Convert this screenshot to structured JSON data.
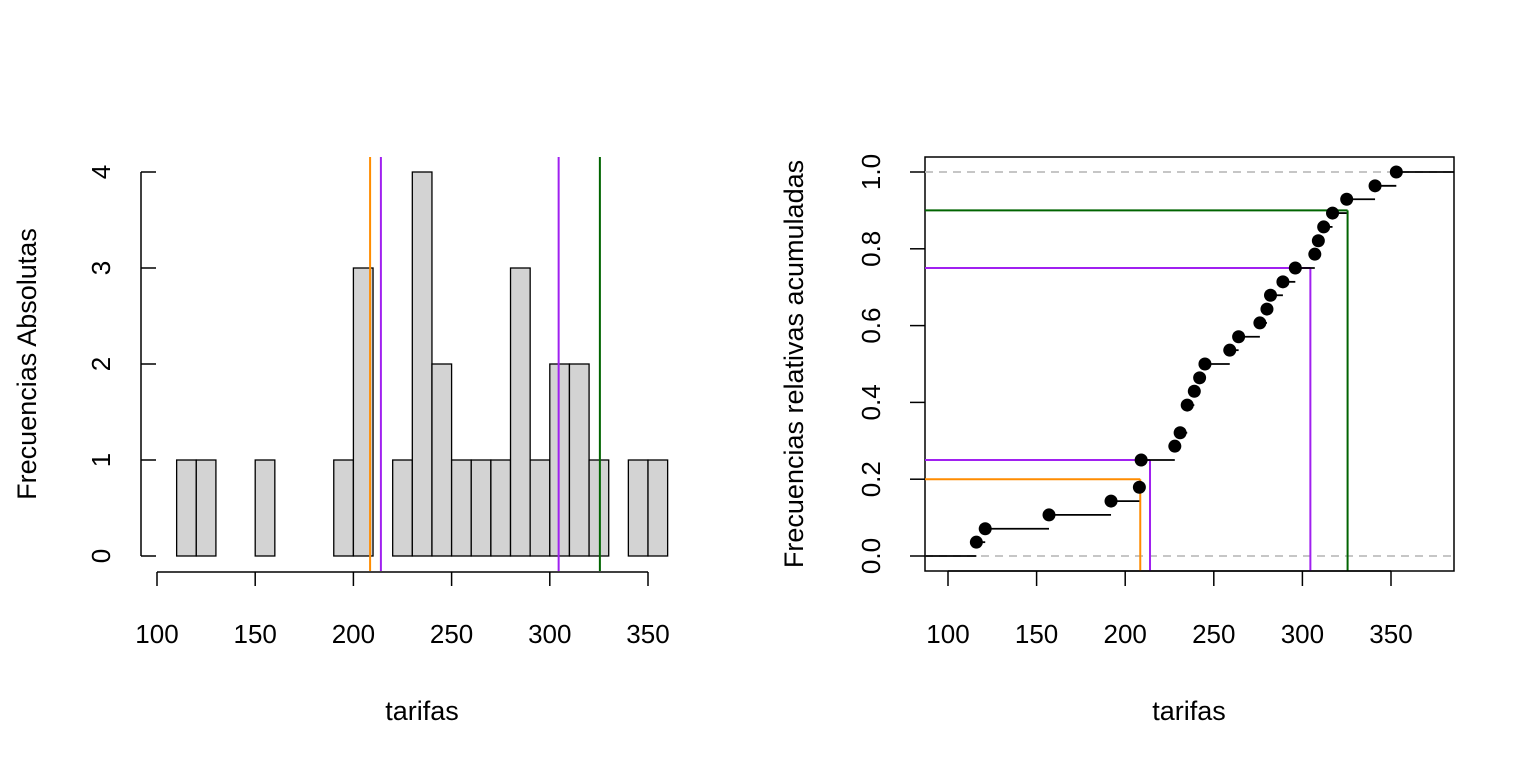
{
  "colors": {
    "bar_fill": "#d3d3d3",
    "bar_stroke": "#000000",
    "orange": "#ff8c00",
    "purple": "#a020f0",
    "green": "#006400",
    "ref_dash": "#bebebe",
    "point": "#000000"
  },
  "chart_data": [
    {
      "type": "bar",
      "subtype": "histogram",
      "xlabel": "tarifas",
      "ylabel": "Frecuencias Absolutas",
      "xlim": [
        100,
        360
      ],
      "ylim": [
        0,
        4
      ],
      "xticks": [
        100,
        150,
        200,
        250,
        300,
        350
      ],
      "yticks": [
        0,
        1,
        2,
        3,
        4
      ],
      "bins": [
        {
          "x0": 110,
          "x1": 120,
          "count": 1
        },
        {
          "x0": 120,
          "x1": 130,
          "count": 1
        },
        {
          "x0": 130,
          "x1": 140,
          "count": 0
        },
        {
          "x0": 140,
          "x1": 150,
          "count": 0
        },
        {
          "x0": 150,
          "x1": 160,
          "count": 1
        },
        {
          "x0": 160,
          "x1": 170,
          "count": 0
        },
        {
          "x0": 170,
          "x1": 180,
          "count": 0
        },
        {
          "x0": 180,
          "x1": 190,
          "count": 0
        },
        {
          "x0": 190,
          "x1": 200,
          "count": 1
        },
        {
          "x0": 200,
          "x1": 210,
          "count": 3
        },
        {
          "x0": 210,
          "x1": 220,
          "count": 0
        },
        {
          "x0": 220,
          "x1": 230,
          "count": 1
        },
        {
          "x0": 230,
          "x1": 240,
          "count": 4
        },
        {
          "x0": 240,
          "x1": 250,
          "count": 2
        },
        {
          "x0": 250,
          "x1": 260,
          "count": 1
        },
        {
          "x0": 260,
          "x1": 270,
          "count": 1
        },
        {
          "x0": 270,
          "x1": 280,
          "count": 1
        },
        {
          "x0": 280,
          "x1": 290,
          "count": 3
        },
        {
          "x0": 290,
          "x1": 300,
          "count": 1
        },
        {
          "x0": 300,
          "x1": 310,
          "count": 2
        },
        {
          "x0": 310,
          "x1": 320,
          "count": 2
        },
        {
          "x0": 320,
          "x1": 330,
          "count": 1
        },
        {
          "x0": 330,
          "x1": 340,
          "count": 0
        },
        {
          "x0": 340,
          "x1": 350,
          "count": 1
        },
        {
          "x0": 350,
          "x1": 360,
          "count": 1
        }
      ],
      "vlines": [
        {
          "x": 208.5,
          "color": "#ff8c00"
        },
        {
          "x": 214,
          "color": "#a020f0"
        },
        {
          "x": 304.5,
          "color": "#a020f0"
        },
        {
          "x": 325.5,
          "color": "#006400"
        }
      ]
    },
    {
      "type": "line",
      "subtype": "ecdf-step",
      "xlabel": "tarifas",
      "ylabel": "Frecuencias relativas acumuladas",
      "xlim": [
        87,
        383
      ],
      "ylim": [
        -0.04,
        1.04
      ],
      "xticks": [
        100,
        150,
        200,
        250,
        300,
        350
      ],
      "yticks": [
        0.0,
        0.2,
        0.4,
        0.6,
        0.8,
        1.0
      ],
      "ytick_labels": [
        "0.0",
        "0.2",
        "0.4",
        "0.6",
        "0.8",
        "1.0"
      ],
      "reference_lines_y": [
        0,
        1
      ],
      "points": [
        {
          "x": 116,
          "y": 0.036
        },
        {
          "x": 121,
          "y": 0.071
        },
        {
          "x": 157,
          "y": 0.107
        },
        {
          "x": 192,
          "y": 0.143
        },
        {
          "x": 208,
          "y": 0.179
        },
        {
          "x": 209,
          "y": 0.25
        },
        {
          "x": 228,
          "y": 0.286
        },
        {
          "x": 231,
          "y": 0.321
        },
        {
          "x": 235,
          "y": 0.393
        },
        {
          "x": 239,
          "y": 0.429
        },
        {
          "x": 242,
          "y": 0.464
        },
        {
          "x": 245,
          "y": 0.5
        },
        {
          "x": 259,
          "y": 0.536
        },
        {
          "x": 264,
          "y": 0.571
        },
        {
          "x": 276,
          "y": 0.607
        },
        {
          "x": 280,
          "y": 0.643
        },
        {
          "x": 282,
          "y": 0.679
        },
        {
          "x": 289,
          "y": 0.714
        },
        {
          "x": 296,
          "y": 0.75
        },
        {
          "x": 307,
          "y": 0.786
        },
        {
          "x": 309,
          "y": 0.821
        },
        {
          "x": 312,
          "y": 0.857
        },
        {
          "x": 317,
          "y": 0.893
        },
        {
          "x": 325,
          "y": 0.929
        },
        {
          "x": 341,
          "y": 0.964
        },
        {
          "x": 353,
          "y": 1.0
        }
      ],
      "quantile_markers": [
        {
          "x": 208.5,
          "p": 0.2,
          "color": "#ff8c00"
        },
        {
          "x": 214,
          "p": 0.25,
          "color": "#a020f0"
        },
        {
          "x": 304.5,
          "p": 0.75,
          "color": "#a020f0"
        },
        {
          "x": 325.5,
          "p": 0.9,
          "color": "#006400"
        }
      ]
    }
  ]
}
